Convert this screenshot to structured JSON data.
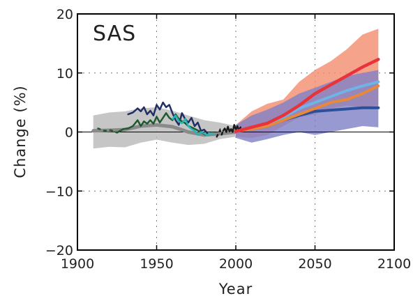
{
  "chart_data": {
    "type": "line",
    "title": "SAS",
    "xlabel": "Year",
    "ylabel": "Change (%)",
    "xlim": [
      1900,
      2100
    ],
    "ylim": [
      -20,
      20
    ],
    "xticks": [
      1900,
      1950,
      2000,
      2050,
      2100
    ],
    "yticks": [
      -20,
      -10,
      0,
      10,
      20
    ],
    "x_tick_labels": [
      "1900",
      "1950",
      "2000",
      "2050",
      "2100"
    ],
    "y_tick_labels": [
      "−20",
      "−10",
      "0",
      "10",
      "20"
    ],
    "grid": "dotted",
    "zero_line": true,
    "bands": [
      {
        "color": "#b8b8b8",
        "x": [
          1910,
          1920,
          1930,
          1940,
          1950,
          1960,
          1970,
          1980,
          1990,
          2000
        ],
        "upper": [
          2.8,
          3.3,
          3.5,
          4.0,
          4.2,
          3.6,
          2.8,
          2.0,
          1.6,
          1.0
        ],
        "lower": [
          -2.8,
          -2.5,
          -2.6,
          -1.8,
          -1.3,
          -1.8,
          -2.2,
          -2.0,
          -1.2,
          -0.8
        ]
      },
      {
        "color": "#f28c6e",
        "x": [
          2000,
          2010,
          2020,
          2030,
          2040,
          2050,
          2060,
          2070,
          2080,
          2090
        ],
        "upper": [
          1.2,
          3.5,
          4.8,
          5.5,
          8.5,
          10.5,
          12.0,
          14.0,
          16.5,
          17.5
        ],
        "lower": [
          -0.8,
          -1.0,
          -0.5,
          1.0,
          2.5,
          3.0,
          4.0,
          4.5,
          4.2,
          4.5
        ]
      },
      {
        "color": "#7f7fc6",
        "x": [
          2000,
          2010,
          2020,
          2030,
          2040,
          2050,
          2060,
          2070,
          2080,
          2090
        ],
        "upper": [
          1.2,
          2.8,
          3.8,
          5.0,
          6.5,
          7.5,
          8.5,
          9.5,
          10.0,
          10.5
        ],
        "lower": [
          -1.0,
          -1.8,
          -1.2,
          -0.5,
          0.0,
          -0.5,
          0.0,
          0.5,
          1.0,
          0.8
        ]
      }
    ],
    "series": [
      {
        "color": "#8a8a8a",
        "width": 5,
        "x": [
          1910,
          1920,
          1930,
          1940,
          1950,
          1960,
          1970,
          1980,
          1990,
          2000
        ],
        "y": [
          0.2,
          0.3,
          0.4,
          1.0,
          1.2,
          0.9,
          0.0,
          -0.5,
          -0.3,
          0.0
        ]
      },
      {
        "color": "#1f2f66",
        "width": 2.5,
        "x": [
          1932,
          1935,
          1938,
          1940,
          1942,
          1944,
          1946,
          1948,
          1950,
          1952,
          1954,
          1956,
          1958,
          1960,
          1962,
          1964,
          1966,
          1968,
          1970,
          1972,
          1974,
          1976,
          1978,
          1980,
          1982
        ],
        "y": [
          3.0,
          3.3,
          4.0,
          3.5,
          4.2,
          3.0,
          3.6,
          2.8,
          4.6,
          3.8,
          5.0,
          4.2,
          4.6,
          3.2,
          2.0,
          1.2,
          3.2,
          2.2,
          1.6,
          2.4,
          1.0,
          1.6,
          0.2,
          0.4,
          -0.2
        ]
      },
      {
        "color": "#1f5a2e",
        "width": 2.5,
        "dashed_start": true,
        "x": [
          1913,
          1917,
          1921,
          1925,
          1929,
          1932,
          1935,
          1938,
          1940,
          1942,
          1944,
          1946,
          1948,
          1950,
          1952,
          1954,
          1956,
          1958,
          1960,
          1962,
          1964,
          1966,
          1968,
          1970,
          1972,
          1975,
          1978,
          1981
        ],
        "y": [
          0.6,
          0.2,
          0.3,
          -0.1,
          0.5,
          0.6,
          1.0,
          2.0,
          1.0,
          1.8,
          1.4,
          2.0,
          1.4,
          2.6,
          1.6,
          2.4,
          3.2,
          2.4,
          2.0,
          3.0,
          2.2,
          1.8,
          1.5,
          1.0,
          0.8,
          0.4,
          0.0,
          -0.5
        ]
      },
      {
        "color": "#27b5b5",
        "width": 2.5,
        "x": [
          1960,
          1962,
          1964,
          1966,
          1968,
          1970,
          1972,
          1974,
          1976,
          1978,
          1980,
          1982,
          1984,
          1986
        ],
        "y": [
          2.2,
          2.8,
          1.8,
          1.5,
          2.2,
          1.0,
          0.5,
          0.2,
          -0.5,
          0.0,
          -0.2,
          -0.6,
          -0.2,
          -0.3
        ]
      },
      {
        "color": "#1a1a1a",
        "width": 2.5,
        "dashed_start": true,
        "x": [
          1988,
          1990,
          1991,
          1992,
          1993,
          1994,
          1995,
          1996,
          1997,
          1998,
          1999,
          2000,
          2001,
          2002,
          2003
        ],
        "y": [
          -0.8,
          0.3,
          -0.5,
          0.2,
          0.6,
          0.0,
          0.9,
          0.1,
          0.5,
          0.0,
          1.2,
          0.4,
          1.0,
          0.3,
          0.8
        ]
      },
      {
        "color": "#2b4f9a",
        "width": 4,
        "x": [
          2000,
          2010,
          2020,
          2030,
          2040,
          2050,
          2060,
          2070,
          2080,
          2090
        ],
        "y": [
          0.1,
          0.5,
          1.0,
          2.0,
          2.8,
          3.5,
          3.7,
          3.9,
          4.1,
          4.1
        ]
      },
      {
        "color": "#e8893a",
        "width": 4,
        "x": [
          2000,
          2010,
          2020,
          2030,
          2040,
          2050,
          2060,
          2070,
          2080,
          2090
        ],
        "y": [
          0.1,
          0.5,
          1.0,
          2.0,
          3.0,
          4.0,
          5.0,
          5.5,
          6.5,
          7.8
        ]
      },
      {
        "color": "#6fb4e6",
        "width": 4,
        "x": [
          2000,
          2010,
          2020,
          2030,
          2040,
          2050,
          2060,
          2070,
          2080,
          2090
        ],
        "y": [
          0.1,
          0.8,
          1.5,
          2.5,
          4.0,
          5.0,
          6.0,
          7.0,
          7.8,
          8.5
        ]
      },
      {
        "color": "#e8333a",
        "width": 4.5,
        "x": [
          2000,
          2010,
          2020,
          2030,
          2040,
          2050,
          2060,
          2070,
          2080,
          2090
        ],
        "y": [
          0.1,
          0.8,
          1.5,
          2.8,
          4.5,
          6.5,
          8.0,
          9.5,
          11.0,
          12.3
        ]
      }
    ]
  }
}
